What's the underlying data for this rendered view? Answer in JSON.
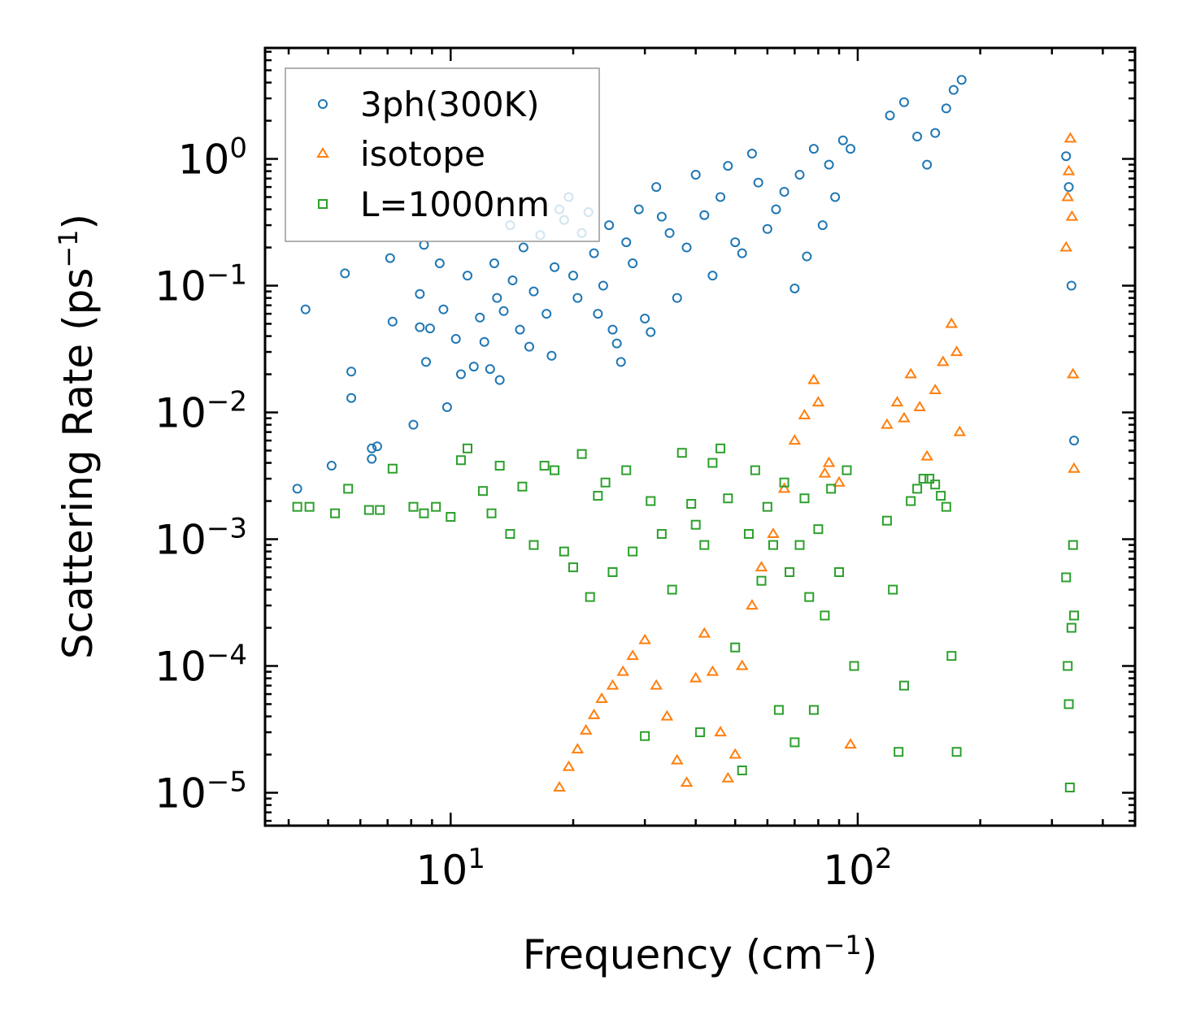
{
  "chart_data": {
    "type": "scatter",
    "xlabel": "Frequency (cm",
    "xlabel_sup": "−1",
    "xlabel_end": ")",
    "ylabel": "Scattering Rate (ps",
    "ylabel_sup": "−1",
    "ylabel_end": ")",
    "xscale": "log",
    "yscale": "log",
    "xlim": [
      3.5,
      480
    ],
    "ylim": [
      5.5e-06,
      7.5
    ],
    "x_major_ticks": [
      {
        "value": 10,
        "base": "10",
        "exp": "1"
      },
      {
        "value": 100,
        "base": "10",
        "exp": "2"
      }
    ],
    "y_major_ticks": [
      {
        "value": 1,
        "base": "10",
        "exp": "0"
      },
      {
        "value": 0.1,
        "base": "10",
        "exp": "−1"
      },
      {
        "value": 0.01,
        "base": "10",
        "exp": "−2"
      },
      {
        "value": 0.001,
        "base": "10",
        "exp": "−3"
      },
      {
        "value": 0.0001,
        "base": "10",
        "exp": "−4"
      },
      {
        "value": 1e-05,
        "base": "10",
        "exp": "−5"
      }
    ],
    "legend_position": "top-left",
    "series": [
      {
        "name": "3ph(300K)",
        "marker": "circle",
        "color": "#1f77b4",
        "points": [
          [
            4.2,
            0.0025
          ],
          [
            4.4,
            0.065
          ],
          [
            5.1,
            0.0038
          ],
          [
            5.5,
            0.125
          ],
          [
            5.7,
            0.021
          ],
          [
            5.7,
            0.013
          ],
          [
            6.4,
            0.0052
          ],
          [
            6.4,
            0.0043
          ],
          [
            6.6,
            0.0054
          ],
          [
            7.1,
            0.165
          ],
          [
            7.2,
            0.052
          ],
          [
            8.1,
            0.008
          ],
          [
            8.4,
            0.047
          ],
          [
            8.4,
            0.086
          ],
          [
            8.6,
            0.21
          ],
          [
            8.7,
            0.025
          ],
          [
            8.9,
            0.046
          ],
          [
            9.4,
            0.15
          ],
          [
            9.6,
            0.065
          ],
          [
            9.8,
            0.011
          ],
          [
            10.3,
            0.038
          ],
          [
            10.6,
            0.02
          ],
          [
            11,
            0.12
          ],
          [
            11.4,
            0.023
          ],
          [
            11.8,
            0.056
          ],
          [
            12.1,
            0.036
          ],
          [
            12.5,
            0.022
          ],
          [
            12.8,
            0.15
          ],
          [
            13,
            0.08
          ],
          [
            13.2,
            0.018
          ],
          [
            13.5,
            0.063
          ],
          [
            14,
            0.3
          ],
          [
            14.2,
            0.11
          ],
          [
            14.8,
            0.045
          ],
          [
            15.1,
            0.2
          ],
          [
            15.6,
            0.033
          ],
          [
            16,
            0.09
          ],
          [
            16.6,
            0.25
          ],
          [
            17.2,
            0.06
          ],
          [
            17.7,
            0.028
          ],
          [
            18,
            0.14
          ],
          [
            18.5,
            0.4
          ],
          [
            19,
            0.33
          ],
          [
            19.5,
            0.5
          ],
          [
            20,
            0.12
          ],
          [
            20.5,
            0.08
          ],
          [
            21,
            0.26
          ],
          [
            21.8,
            0.38
          ],
          [
            22.5,
            0.18
          ],
          [
            23,
            0.06
          ],
          [
            23.7,
            0.1
          ],
          [
            24.5,
            0.3
          ],
          [
            25,
            0.045
          ],
          [
            25.6,
            0.035
          ],
          [
            26.2,
            0.025
          ],
          [
            27,
            0.22
          ],
          [
            28,
            0.15
          ],
          [
            29,
            0.4
          ],
          [
            30,
            0.055
          ],
          [
            31,
            0.043
          ],
          [
            32,
            0.6
          ],
          [
            33,
            0.35
          ],
          [
            34.5,
            0.26
          ],
          [
            36,
            0.08
          ],
          [
            38,
            0.2
          ],
          [
            40,
            0.75
          ],
          [
            42,
            0.36
          ],
          [
            44,
            0.12
          ],
          [
            46,
            0.5
          ],
          [
            48,
            0.88
          ],
          [
            50,
            0.22
          ],
          [
            52,
            0.18
          ],
          [
            55,
            1.1
          ],
          [
            57,
            0.65
          ],
          [
            60,
            0.28
          ],
          [
            63,
            0.4
          ],
          [
            66,
            0.55
          ],
          [
            70,
            0.095
          ],
          [
            72,
            0.75
          ],
          [
            75,
            0.17
          ],
          [
            78,
            1.2
          ],
          [
            82,
            0.3
          ],
          [
            85,
            0.9
          ],
          [
            88,
            0.5
          ],
          [
            92,
            1.4
          ],
          [
            96,
            1.2
          ],
          [
            120,
            2.2
          ],
          [
            130,
            2.8
          ],
          [
            140,
            1.5
          ],
          [
            148,
            0.9
          ],
          [
            155,
            1.6
          ],
          [
            165,
            2.5
          ],
          [
            172,
            3.5
          ],
          [
            180,
            4.2
          ],
          [
            325,
            1.05
          ],
          [
            330,
            0.6
          ],
          [
            335,
            0.1
          ],
          [
            340,
            0.006
          ]
        ]
      },
      {
        "name": "isotope",
        "marker": "triangle",
        "color": "#ff7f0e",
        "points": [
          [
            18.5,
            1.1e-05
          ],
          [
            19.5,
            1.6e-05
          ],
          [
            20.5,
            2.2e-05
          ],
          [
            21.5,
            3.1e-05
          ],
          [
            22.5,
            4.1e-05
          ],
          [
            23.5,
            5.5e-05
          ],
          [
            25,
            7e-05
          ],
          [
            26.5,
            9e-05
          ],
          [
            28,
            0.00012
          ],
          [
            30,
            0.00016
          ],
          [
            32,
            7e-05
          ],
          [
            34,
            4e-05
          ],
          [
            36,
            1.8e-05
          ],
          [
            38,
            1.2e-05
          ],
          [
            40,
            8e-05
          ],
          [
            42,
            0.00018
          ],
          [
            44,
            9e-05
          ],
          [
            46,
            3e-05
          ],
          [
            48,
            1.3e-05
          ],
          [
            50,
            2e-05
          ],
          [
            52,
            0.0001
          ],
          [
            55,
            0.0003
          ],
          [
            58,
            0.0006
          ],
          [
            62,
            0.0011
          ],
          [
            66,
            0.0025
          ],
          [
            70,
            0.006
          ],
          [
            74,
            0.0095
          ],
          [
            78,
            0.018
          ],
          [
            80,
            0.012
          ],
          [
            83,
            0.0033
          ],
          [
            85,
            0.004
          ],
          [
            90,
            0.0028
          ],
          [
            96,
            2.4e-05
          ],
          [
            118,
            0.008
          ],
          [
            125,
            0.012
          ],
          [
            130,
            0.009
          ],
          [
            135,
            0.02
          ],
          [
            142,
            0.011
          ],
          [
            148,
            0.0045
          ],
          [
            155,
            0.015
          ],
          [
            162,
            0.025
          ],
          [
            170,
            0.05
          ],
          [
            175,
            0.03
          ],
          [
            178,
            0.007
          ],
          [
            325,
            0.2
          ],
          [
            328,
            0.5
          ],
          [
            330,
            0.8
          ],
          [
            333,
            1.45
          ],
          [
            336,
            0.35
          ],
          [
            338,
            0.02
          ],
          [
            340,
            0.0036
          ]
        ]
      },
      {
        "name": "L=1000nm",
        "marker": "square",
        "color": "#2ca02c",
        "points": [
          [
            4.2,
            0.0018
          ],
          [
            4.5,
            0.0018
          ],
          [
            5.2,
            0.0016
          ],
          [
            5.6,
            0.0025
          ],
          [
            6.3,
            0.0017
          ],
          [
            6.7,
            0.0017
          ],
          [
            7.2,
            0.0036
          ],
          [
            8.1,
            0.0018
          ],
          [
            8.6,
            0.0016
          ],
          [
            9.2,
            0.0018
          ],
          [
            10,
            0.0015
          ],
          [
            10.6,
            0.0042
          ],
          [
            11,
            0.0052
          ],
          [
            12,
            0.0024
          ],
          [
            12.6,
            0.0016
          ],
          [
            13.2,
            0.0038
          ],
          [
            14,
            0.0011
          ],
          [
            15,
            0.0026
          ],
          [
            16,
            0.0009
          ],
          [
            17,
            0.0038
          ],
          [
            18,
            0.0035
          ],
          [
            19,
            0.0008
          ],
          [
            20,
            0.0006
          ],
          [
            21,
            0.0047
          ],
          [
            22,
            0.00035
          ],
          [
            23,
            0.0022
          ],
          [
            24,
            0.0028
          ],
          [
            25,
            0.00055
          ],
          [
            27,
            0.0035
          ],
          [
            28,
            0.0008
          ],
          [
            30,
            2.8e-05
          ],
          [
            31,
            0.002
          ],
          [
            33,
            0.0011
          ],
          [
            35,
            0.0004
          ],
          [
            37,
            0.0048
          ],
          [
            39,
            0.0019
          ],
          [
            40,
            0.0013
          ],
          [
            41,
            3e-05
          ],
          [
            42,
            0.0009
          ],
          [
            44,
            0.004
          ],
          [
            46,
            0.0052
          ],
          [
            48,
            0.0021
          ],
          [
            50,
            0.00014
          ],
          [
            52,
            1.5e-05
          ],
          [
            54,
            0.0011
          ],
          [
            56,
            0.0035
          ],
          [
            58,
            0.00047
          ],
          [
            60,
            0.0018
          ],
          [
            62,
            0.0009
          ],
          [
            64,
            4.5e-05
          ],
          [
            66,
            0.0028
          ],
          [
            68,
            0.00055
          ],
          [
            70,
            2.5e-05
          ],
          [
            72,
            0.0009
          ],
          [
            74,
            0.0021
          ],
          [
            76,
            0.00035
          ],
          [
            78,
            4.5e-05
          ],
          [
            80,
            0.0012
          ],
          [
            83,
            0.00025
          ],
          [
            86,
            0.0025
          ],
          [
            90,
            0.00055
          ],
          [
            94,
            0.0035
          ],
          [
            98,
            0.0001
          ],
          [
            118,
            0.0014
          ],
          [
            122,
            0.0004
          ],
          [
            126,
            2.1e-05
          ],
          [
            130,
            7e-05
          ],
          [
            135,
            0.002
          ],
          [
            140,
            0.0025
          ],
          [
            145,
            0.003
          ],
          [
            150,
            0.003
          ],
          [
            155,
            0.0027
          ],
          [
            160,
            0.0022
          ],
          [
            165,
            0.0018
          ],
          [
            170,
            0.00012
          ],
          [
            175,
            2.1e-05
          ],
          [
            325,
            0.0005
          ],
          [
            328,
            0.0001
          ],
          [
            330,
            5e-05
          ],
          [
            332,
            1.1e-05
          ],
          [
            335,
            0.0002
          ],
          [
            338,
            0.0009
          ],
          [
            340,
            0.00025
          ]
        ]
      }
    ]
  }
}
